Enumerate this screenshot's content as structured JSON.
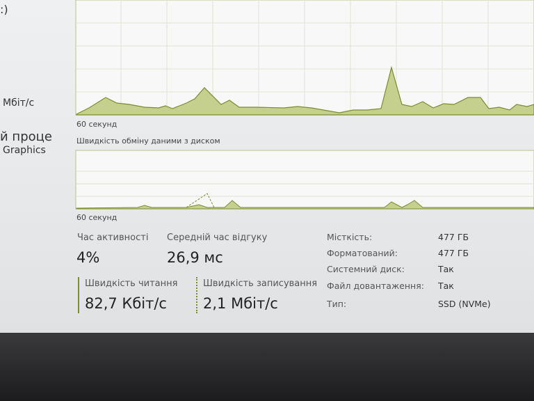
{
  "sidebar": [
    ":)",
    "Мбіт/с",
    "й проце",
    "Graphics"
  ],
  "graphs": [
    {
      "time_label": "60 секунд"
    },
    {
      "title": "Швидкість обміну даними з диском",
      "time_label": "60 секунд"
    }
  ],
  "stats": [
    {
      "label": "Час активності",
      "value": "4%"
    },
    {
      "label": "Середній час відгуку",
      "value": "26,9 мс"
    },
    {
      "label": "Швидкість читання",
      "value": "82,7 Кбіт/с"
    },
    {
      "label": "Швидкість записування",
      "value": "2,1 Мбіт/с"
    }
  ],
  "properties": [
    {
      "label": "Місткість:",
      "value": "477 ГБ"
    },
    {
      "label": "Форматований:",
      "value": "477 ГБ"
    },
    {
      "label": "Системний диск:",
      "value": "Так"
    },
    {
      "label": "Файл довантаження:",
      "value": "Так"
    },
    {
      "label": "Тип:",
      "value": "SSD (NVMe)"
    }
  ]
}
